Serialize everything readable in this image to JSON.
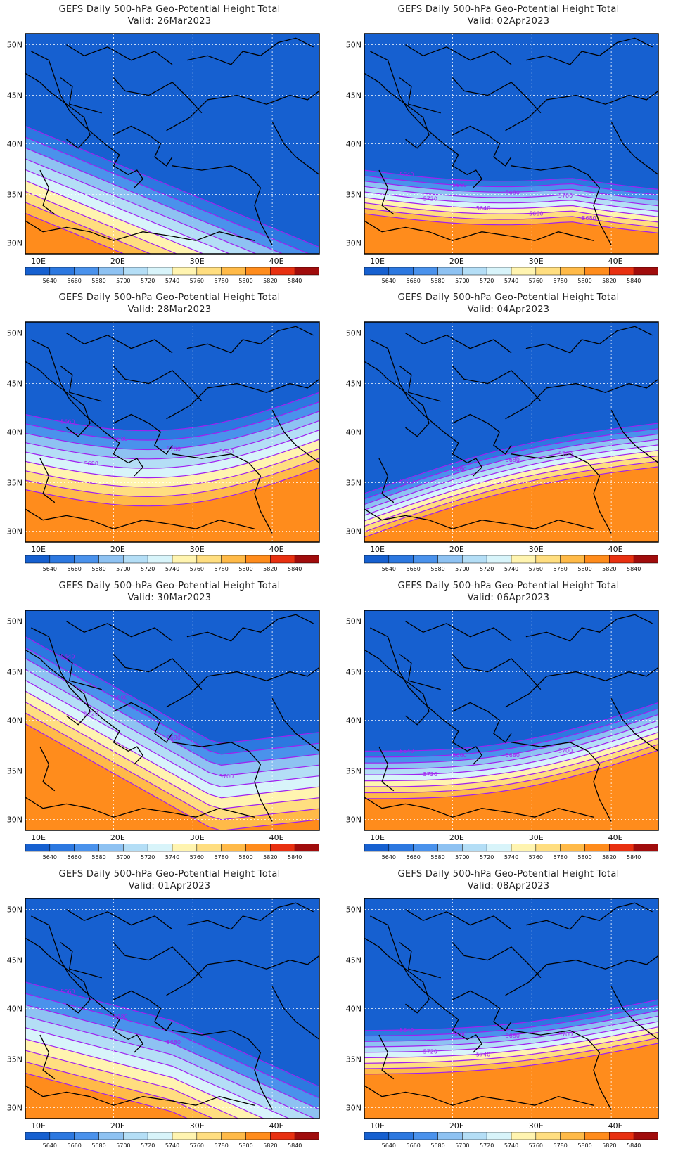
{
  "panels": [
    {
      "title": "GEFS Daily 500-hPa Geo-Potential Height Total",
      "valid": "Valid: 26Mar2023",
      "pattern": "ridge-west-strong",
      "contour_labels": []
    },
    {
      "title": "GEFS Daily 500-hPa Geo-Potential Height Total",
      "valid": "Valid: 02Apr2023",
      "pattern": "zonal-south",
      "contour_labels": [
        "5640",
        "5660",
        "5680",
        "5700",
        "5720",
        "5640",
        "5660",
        "5680"
      ]
    },
    {
      "title": "GEFS Daily 500-hPa Geo-Potential Height Total",
      "valid": "Valid: 28Mar2023",
      "pattern": "zonal-wave",
      "contour_labels": [
        "5660",
        "5680",
        "5700",
        "5640",
        "5680"
      ]
    },
    {
      "title": "GEFS Daily 500-hPa Geo-Potential Height Total",
      "valid": "Valid: 04Apr2023",
      "pattern": "zonal-south-rise-east",
      "contour_labels": [
        "5640",
        "5660",
        "5680",
        "5700"
      ]
    },
    {
      "title": "GEFS Daily 500-hPa Geo-Potential Height Total",
      "valid": "Valid: 30Mar2023",
      "pattern": "ridge-west-trough-east",
      "contour_labels": [
        "5640",
        "5660",
        "5680",
        "5700",
        "5720"
      ]
    },
    {
      "title": "GEFS Daily 500-hPa Geo-Potential Height Total",
      "valid": "Valid: 06Apr2023",
      "pattern": "zonal-trough-center",
      "contour_labels": [
        "5640",
        "5660",
        "5680",
        "5700",
        "5720"
      ]
    },
    {
      "title": "GEFS Daily 500-hPa Geo-Potential Height Total",
      "valid": "Valid: 01Apr2023",
      "pattern": "ridge-southwest",
      "contour_labels": [
        "5660",
        "5680",
        "5680"
      ]
    },
    {
      "title": "GEFS Daily 500-hPa Geo-Potential Height Total",
      "valid": "Valid: 08Apr2023",
      "pattern": "zonal-broad",
      "contour_labels": [
        "5640",
        "5660",
        "5680",
        "5700",
        "5720",
        "5740"
      ]
    }
  ],
  "axis": {
    "lat_labels": [
      "50N",
      "45N",
      "40N",
      "35N",
      "30N"
    ],
    "lon_labels": [
      "10E",
      "20E",
      "30E",
      "40E"
    ]
  },
  "colorbar": {
    "labels": [
      "5640",
      "5660",
      "5680",
      "5700",
      "5720",
      "5740",
      "5760",
      "5780",
      "5800",
      "5820",
      "5840"
    ],
    "colors": [
      "#1660d0",
      "#2c78e0",
      "#4a92ec",
      "#8ec2f2",
      "#b4def6",
      "#d8f4fa",
      "#fff4b0",
      "#ffde80",
      "#ffba48",
      "#ff8c1c",
      "#e83010",
      "#a00c0c"
    ]
  },
  "contour_color": "#a020f0"
}
